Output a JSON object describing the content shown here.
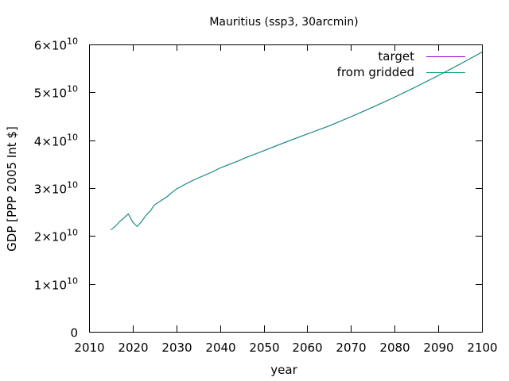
{
  "chart_data": {
    "type": "line",
    "title": "Mauritius (ssp3, 30arcmin)",
    "xlabel": "year",
    "ylabel": "GDP [PPP 2005 Int $]",
    "xlim": [
      2010,
      2100
    ],
    "ylim": [
      0,
      60000000000
    ],
    "x_ticks": [
      2010,
      2020,
      2030,
      2040,
      2050,
      2060,
      2070,
      2080,
      2090,
      2100
    ],
    "y_ticks": [
      {
        "value": 0,
        "mantissa": "0",
        "exponent": ""
      },
      {
        "value": 10000000000,
        "mantissa": "1×10",
        "exponent": "10"
      },
      {
        "value": 20000000000,
        "mantissa": "2×10",
        "exponent": "10"
      },
      {
        "value": 30000000000,
        "mantissa": "3×10",
        "exponent": "10"
      },
      {
        "value": 40000000000,
        "mantissa": "4×10",
        "exponent": "10"
      },
      {
        "value": 50000000000,
        "mantissa": "5×10",
        "exponent": "10"
      },
      {
        "value": 60000000000,
        "mantissa": "6×10",
        "exponent": "10"
      }
    ],
    "grid": false,
    "legend_position": "top-right",
    "series": [
      {
        "name": "target",
        "color": "#9400d3",
        "x": [
          2015,
          2016,
          2017,
          2018,
          2019,
          2020,
          2021,
          2022,
          2023,
          2024,
          2025,
          2026,
          2027,
          2028,
          2029,
          2030,
          2032,
          2034,
          2036,
          2038,
          2040,
          2042,
          2044,
          2046,
          2048,
          2050,
          2055,
          2060,
          2065,
          2070,
          2075,
          2080,
          2085,
          2090,
          2095,
          2100
        ],
        "y": [
          21300000000,
          22000000000,
          23000000000,
          23800000000,
          24600000000,
          22900000000,
          22000000000,
          23000000000,
          24300000000,
          25200000000,
          26500000000,
          27100000000,
          27700000000,
          28300000000,
          29100000000,
          29800000000,
          30800000000,
          31700000000,
          32500000000,
          33300000000,
          34200000000,
          34900000000,
          35600000000,
          36400000000,
          37100000000,
          37800000000,
          39600000000,
          41300000000,
          43000000000,
          44900000000,
          46900000000,
          49000000000,
          51200000000,
          53500000000,
          55900000000,
          58400000000
        ]
      },
      {
        "name": "from gridded",
        "color": "#009e73",
        "x": [
          2015,
          2016,
          2017,
          2018,
          2019,
          2020,
          2021,
          2022,
          2023,
          2024,
          2025,
          2026,
          2027,
          2028,
          2029,
          2030,
          2032,
          2034,
          2036,
          2038,
          2040,
          2042,
          2044,
          2046,
          2048,
          2050,
          2055,
          2060,
          2065,
          2070,
          2075,
          2080,
          2085,
          2090,
          2095,
          2100
        ],
        "y": [
          21300000000,
          22000000000,
          23000000000,
          23800000000,
          24600000000,
          22900000000,
          22000000000,
          23000000000,
          24300000000,
          25200000000,
          26500000000,
          27100000000,
          27700000000,
          28300000000,
          29100000000,
          29800000000,
          30800000000,
          31700000000,
          32500000000,
          33300000000,
          34200000000,
          34900000000,
          35600000000,
          36400000000,
          37100000000,
          37800000000,
          39600000000,
          41300000000,
          43000000000,
          44900000000,
          46900000000,
          49000000000,
          51200000000,
          53500000000,
          55900000000,
          58400000000
        ]
      }
    ]
  }
}
